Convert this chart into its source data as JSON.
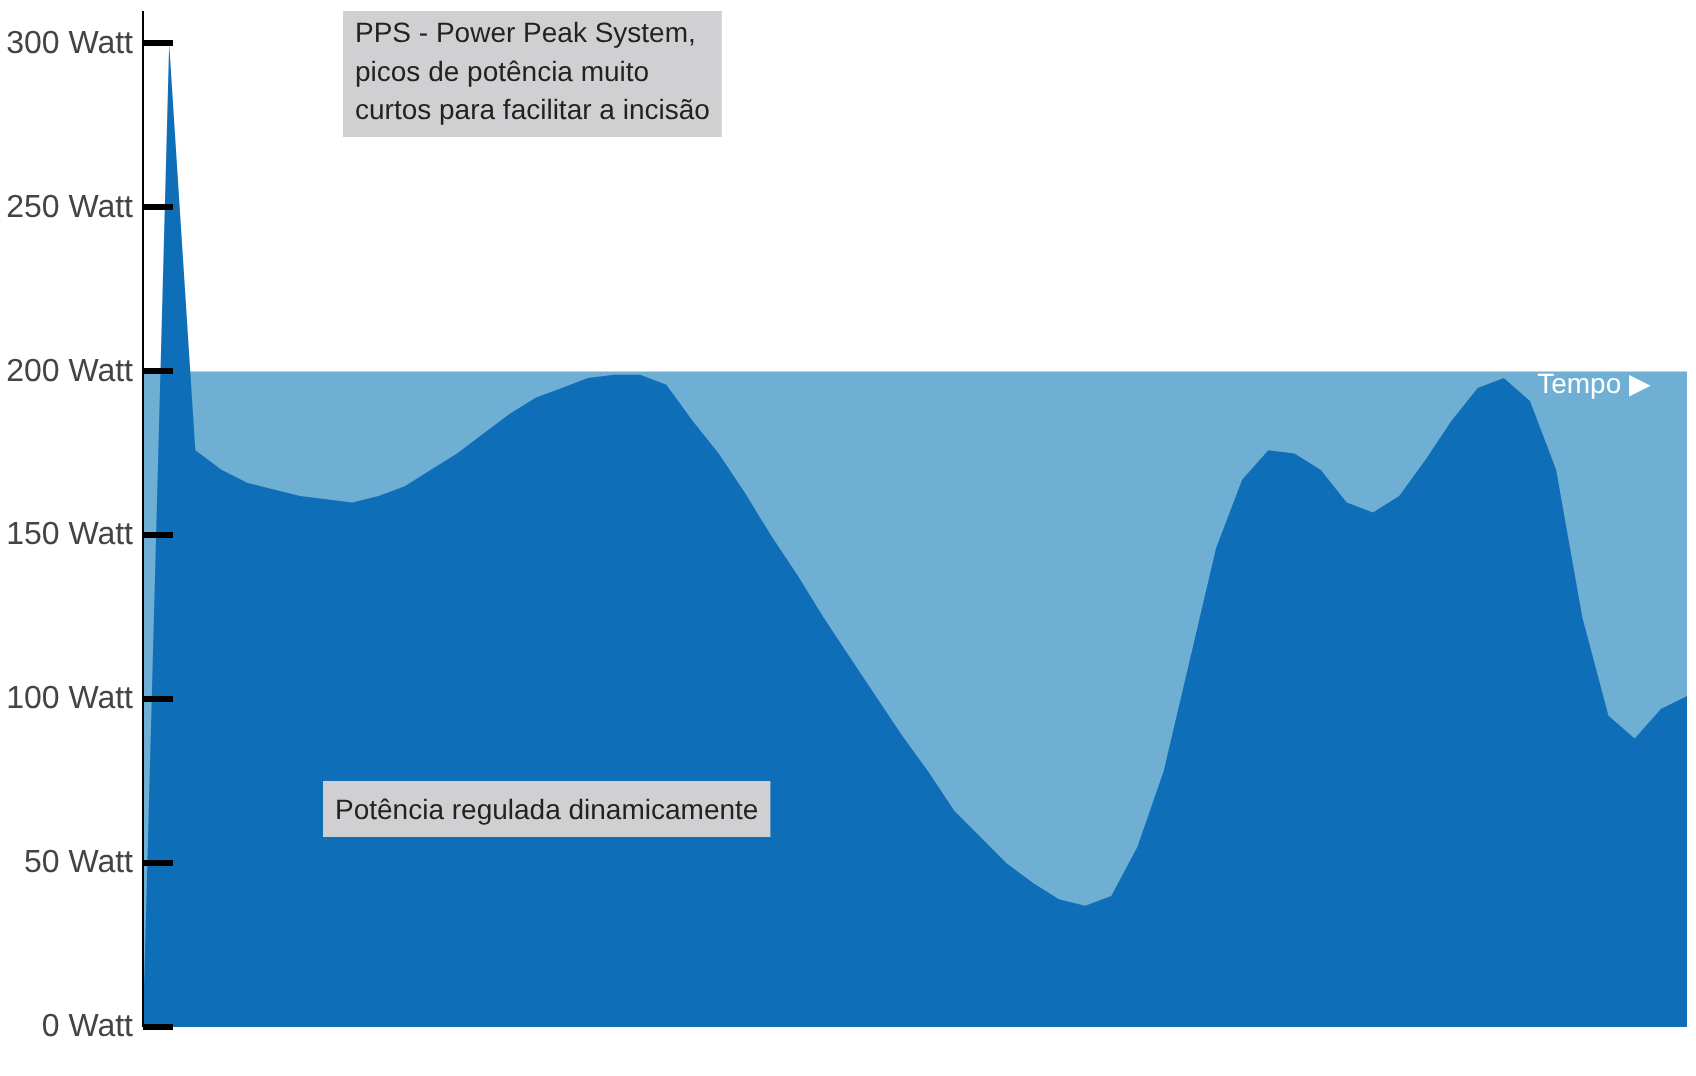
{
  "chart_data": {
    "type": "area",
    "tick_labels": "y",
    "grid": false,
    "ylim": [
      0,
      310
    ],
    "yticks": [
      {
        "value": 0,
        "label": "0 Watt"
      },
      {
        "value": 50,
        "label": "50 Watt"
      },
      {
        "value": 100,
        "label": "100 Watt"
      },
      {
        "value": 150,
        "label": "150 Watt"
      },
      {
        "value": 200,
        "label": "200 Watt"
      },
      {
        "value": 250,
        "label": "250 Watt"
      },
      {
        "value": 300,
        "label": "300 Watt"
      }
    ],
    "categories": [
      null,
      null,
      null,
      null,
      null,
      null,
      null,
      null,
      null,
      null,
      null,
      null,
      null,
      null,
      null,
      null,
      null,
      null,
      null,
      null,
      null,
      null,
      null,
      null,
      null,
      null,
      null,
      null,
      null,
      null,
      null,
      null,
      null,
      null,
      null,
      null,
      null,
      null,
      null,
      null,
      null,
      null,
      null,
      null,
      null,
      null,
      null,
      null,
      null,
      null,
      null,
      null,
      null,
      null,
      null,
      null,
      null,
      null,
      null,
      null
    ],
    "bands": [
      {
        "axis": "y",
        "from": 0,
        "to": 200,
        "color": "#6fafd4"
      }
    ],
    "series": [
      {
        "color": "#0e6eb8",
        "values": [
          0,
          300,
          176,
          170,
          166,
          164,
          162,
          161,
          160,
          162,
          165,
          170,
          175,
          181,
          187,
          192,
          195,
          198,
          199,
          199,
          196,
          185,
          175,
          163,
          150,
          138,
          125,
          113,
          101,
          89,
          78,
          66,
          58,
          50,
          44,
          39,
          37,
          40,
          55,
          78,
          112,
          146,
          167,
          176,
          175,
          170,
          160,
          157,
          162,
          173,
          185,
          195,
          198,
          191,
          170,
          125,
          95,
          88,
          97,
          101
        ]
      }
    ],
    "annotations": [
      "PPS - Power Peak System,\npicos de potência muito\ncurtos para facilitar a incisão",
      "Potência regulada dinamicamente",
      "Tempo ▶"
    ]
  }
}
